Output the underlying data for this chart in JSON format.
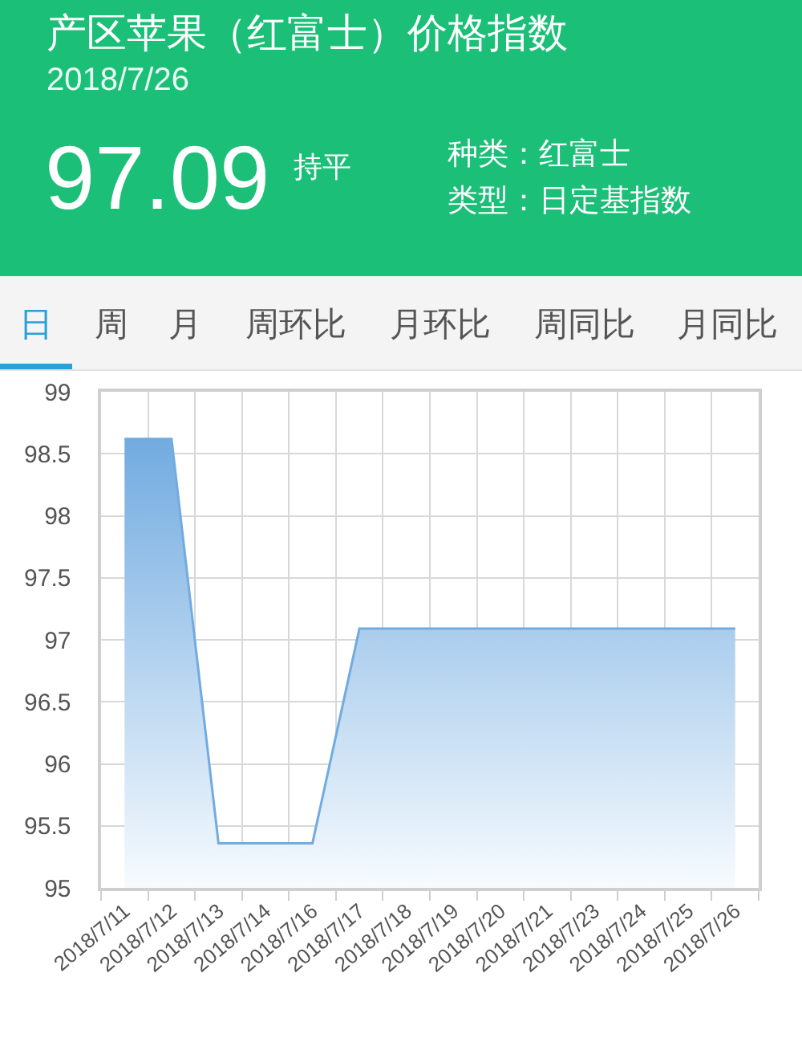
{
  "chart_data": {
    "type": "area",
    "title": "产区苹果（红富士）价格指数",
    "subtitle": "2018/7/26",
    "annotations": [
      "97.09",
      "持平",
      "种类：红富士",
      "类型：日定基指数",
      "日",
      "周",
      "月",
      "周环比",
      "月环比",
      "周同比",
      "月同比"
    ],
    "categories": [
      "2018/7/11",
      "2018/7/12",
      "2018/7/13",
      "2018/7/14",
      "2018/7/16",
      "2018/7/17",
      "2018/7/18",
      "2018/7/19",
      "2018/7/20",
      "2018/7/21",
      "2018/7/23",
      "2018/7/24",
      "2018/7/25",
      "2018/7/26"
    ],
    "values": [
      98.62,
      98.62,
      95.36,
      95.36,
      95.36,
      97.09,
      97.09,
      97.09,
      97.09,
      97.09,
      97.09,
      97.09,
      97.09,
      97.09
    ],
    "color": "#72abe0",
    "ylim": [
      95,
      99
    ],
    "yticks": [
      95,
      95.5,
      96,
      96.5,
      97,
      97.5,
      98,
      98.5,
      99
    ],
    "grid": true,
    "legend": false
  }
}
